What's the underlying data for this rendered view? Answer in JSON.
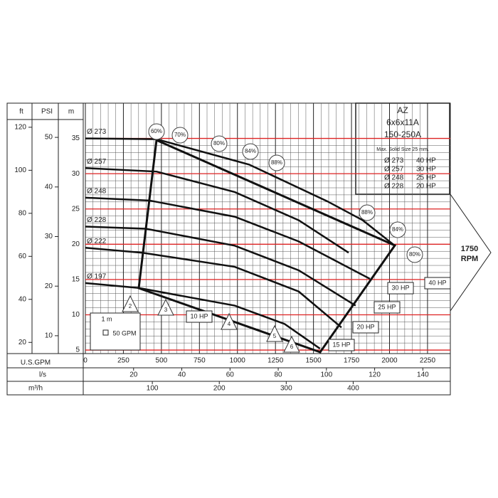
{
  "chart_data": {
    "type": "line",
    "x_label": "U.S.GPM",
    "xlim": [
      0,
      2400
    ],
    "xticks": [
      0,
      250,
      500,
      750,
      1000,
      1250,
      1500,
      1750,
      2000,
      2250
    ],
    "x2_label": "l/s",
    "x2lim": [
      0,
      151.4
    ],
    "x2ticks": [
      20,
      40,
      60,
      80,
      100,
      120,
      140
    ],
    "x3_label": "m³/h",
    "x3lim": [
      0,
      545.1
    ],
    "x3ticks": [
      100,
      200,
      300,
      400
    ],
    "y_label": "m",
    "ylim": [
      4.5,
      40
    ],
    "yticks": [
      5,
      10,
      15,
      20,
      25,
      30,
      35
    ],
    "y2_label": "ft",
    "y2lim": [
      14.8,
      131.2
    ],
    "y2ticks": [
      20,
      40,
      60,
      80,
      100,
      120
    ],
    "y3_label": "PSI",
    "y3lim": [
      6.4,
      56.9
    ],
    "y3ticks": [
      10,
      20,
      30,
      40,
      50
    ],
    "grid": true,
    "series": [
      {
        "name": "Ø 273",
        "color": "#111",
        "x": [
          0,
          468,
          1076,
          1590,
          1824,
          2035
        ],
        "values": [
          35.0,
          34.9,
          31.3,
          26.1,
          23.4,
          19.8
        ]
      },
      {
        "name": "Ø 257",
        "color": "#111",
        "x": [
          0,
          468,
          982,
          1403,
          1731
        ],
        "values": [
          30.8,
          30.3,
          27.4,
          23.4,
          18.8
        ]
      },
      {
        "name": "Ø 248",
        "color": "#111",
        "x": [
          0,
          421,
          982,
          1403,
          1871
        ],
        "values": [
          26.6,
          26.2,
          23.9,
          20.4,
          15.1
        ]
      },
      {
        "name": "Ø 228",
        "color": "#111",
        "x": [
          0,
          398,
          982,
          1403,
          1777
        ],
        "values": [
          22.5,
          22.2,
          19.8,
          16.3,
          11.3
        ]
      },
      {
        "name": "Ø 222",
        "color": "#111",
        "x": [
          0,
          374,
          982,
          1403,
          1684
        ],
        "values": [
          19.5,
          18.8,
          16.8,
          13.3,
          8.2
        ]
      },
      {
        "name": "Ø 197",
        "color": "#111",
        "x": [
          0,
          351,
          982,
          1310,
          1543
        ],
        "values": [
          14.5,
          13.8,
          11.3,
          8.7,
          5.2
        ]
      }
    ],
    "efficiency_labels": [
      "60%",
      "70%",
      "80%",
      "84%",
      "88%",
      "88%",
      "84%",
      "80%"
    ],
    "power_labels": [
      "10 HP",
      "15 HP",
      "20 HP",
      "25 HP",
      "30 HP",
      "40 HP"
    ],
    "npsh_labels": [
      "2",
      "3",
      "4",
      "5",
      "6"
    ],
    "model": {
      "brand": "AZ",
      "size": "6x6x11A",
      "code": "150-250A",
      "note": "Max. Solid Size 25 mm."
    },
    "power_table": [
      {
        "diameter": "Ø 273",
        "power": "40 HP"
      },
      {
        "diameter": "Ø 257",
        "power": "30 HP"
      },
      {
        "diameter": "Ø 248",
        "power": "25 HP"
      },
      {
        "diameter": "Ø 228",
        "power": "20 HP"
      }
    ],
    "speed": [
      "1750",
      "RPM"
    ],
    "scale": {
      "head": "1 m",
      "flow": "50 GPM"
    }
  }
}
